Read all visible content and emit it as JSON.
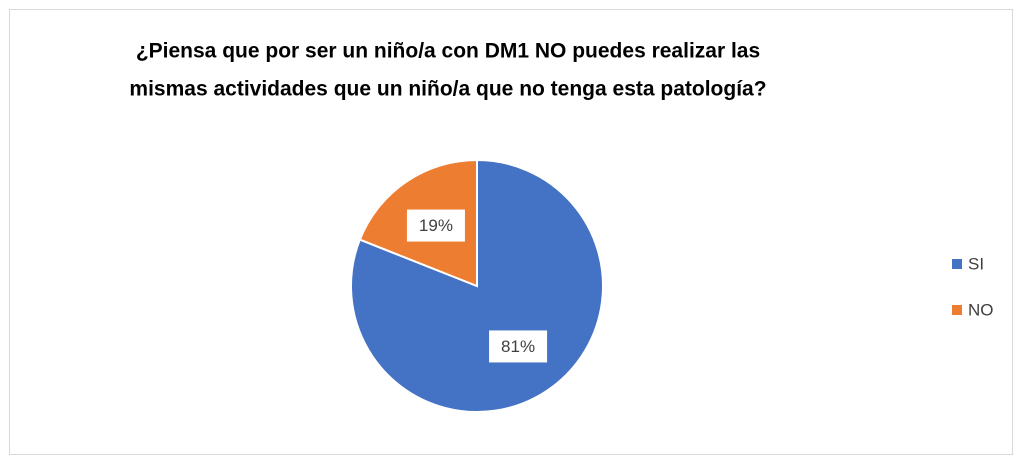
{
  "chart_data": {
    "type": "pie",
    "title": [
      "¿Piensa que por ser un niño/a con DM1 NO puedes realizar las",
      "mismas actividades que un niño/a que no tenga esta patología?"
    ],
    "categories": [
      "SI",
      "NO"
    ],
    "values": [
      81,
      19
    ],
    "value_labels": [
      "81%",
      "19%"
    ],
    "colors": [
      "#4472c4",
      "#ed7d31"
    ],
    "legend": "right"
  }
}
